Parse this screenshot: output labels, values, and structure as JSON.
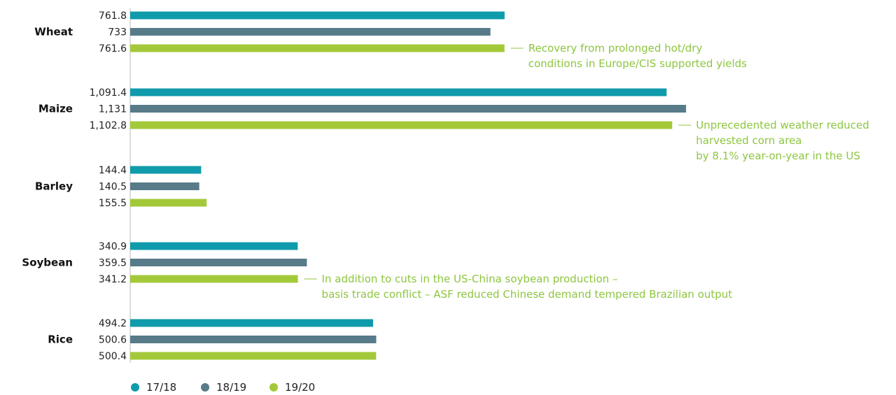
{
  "chart_data": {
    "type": "bar",
    "orientation": "horizontal",
    "title": "",
    "xlabel": "",
    "ylabel": "",
    "xlim": [
      0,
      1131
    ],
    "grid": false,
    "legend_position": "bottom-left",
    "categories": [
      "Wheat",
      "Maize",
      "Barley",
      "Soybean",
      "Rice"
    ],
    "series": [
      {
        "name": "17/18",
        "color": "#0f9bab",
        "values": [
          761.8,
          1091.4,
          144.4,
          340.9,
          494.2
        ],
        "labels": [
          "761.8",
          "1,091.4",
          "144.4",
          "340.9",
          "494.2"
        ]
      },
      {
        "name": "18/19",
        "color": "#577b88",
        "values": [
          733,
          1131,
          140.5,
          359.5,
          500.6
        ],
        "labels": [
          "733",
          "1,131",
          "140.5",
          "359.5",
          "500.6"
        ]
      },
      {
        "name": "19/20",
        "color": "#a3c93a",
        "values": [
          761.6,
          1102.8,
          155.5,
          341.2,
          500.4
        ],
        "labels": [
          "761.6",
          "1,102.8",
          "155.5",
          "341.2",
          "500.4"
        ]
      }
    ],
    "annotations": [
      {
        "category": "Wheat",
        "series": "19/20",
        "lines": [
          "Recovery from prolonged hot/dry",
          "conditions in Europe/CIS supported yields"
        ]
      },
      {
        "category": "Maize",
        "series": "19/20",
        "lines": [
          "Unprecedented weather reduced",
          "harvested corn area",
          "by 8.1% year-on-year in the US"
        ]
      },
      {
        "category": "Soybean",
        "series": "19/20",
        "lines": [
          "In addition to cuts in the US-China soybean production –",
          "basis trade conflict – ASF reduced Chinese demand tempered Brazilian output"
        ]
      }
    ],
    "annotation_color": "#8dc63f"
  }
}
